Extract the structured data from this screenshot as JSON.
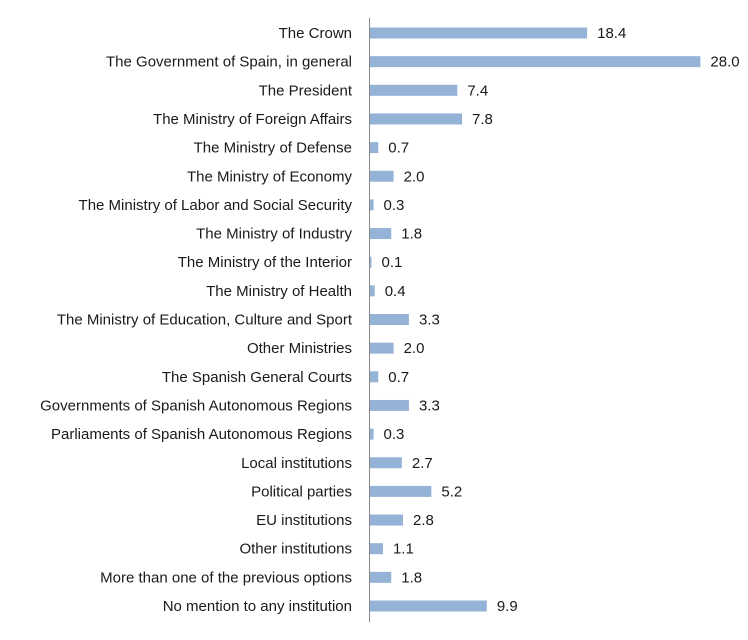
{
  "chart_data": {
    "type": "bar",
    "orientation": "horizontal",
    "title": "",
    "xlabel": "",
    "ylabel": "",
    "xlim": [
      0,
      28
    ],
    "grid": false,
    "legend": "none",
    "bar_color": "#95b3d7",
    "categories": [
      "The Crown",
      "The Government of Spain, in general",
      "The President",
      "The Ministry of Foreign Affairs",
      "The Ministry of Defense",
      "The Ministry of Economy",
      "The Ministry of Labor and Social Security",
      "The Ministry of Industry",
      "The Ministry of the Interior",
      "The Ministry of Health",
      "The Ministry of Education, Culture and Sport",
      "Other Ministries",
      "The Spanish General Courts",
      "Governments of Spanish Autonomous Regions",
      "Parliaments of Spanish Autonomous Regions",
      "Local institutions",
      "Political parties",
      "EU institutions",
      "Other institutions",
      "More than one of the previous options",
      "No mention to any institution"
    ],
    "values": [
      18.4,
      28.0,
      7.4,
      7.8,
      0.7,
      2.0,
      0.3,
      1.8,
      0.1,
      0.4,
      3.3,
      2.0,
      0.7,
      3.3,
      0.3,
      2.7,
      5.2,
      2.8,
      1.1,
      1.8,
      9.9
    ],
    "value_labels": [
      "18.4",
      "28.0",
      "7.4",
      "7.8",
      "0.7",
      "2.0",
      "0.3",
      "1.8",
      "0.1",
      "0.4",
      "3.3",
      "2.0",
      "0.7",
      "3.3",
      "0.3",
      "2.7",
      "5.2",
      "2.8",
      "1.1",
      "1.8",
      "9.9"
    ]
  }
}
